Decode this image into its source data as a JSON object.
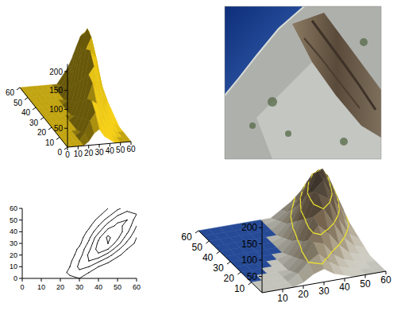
{
  "chart_data": [
    {
      "type": "surface",
      "color": "#e8c414",
      "x": [
        0,
        5,
        10,
        15,
        20,
        25,
        30,
        35,
        40,
        45,
        50,
        55,
        60
      ],
      "y": [
        0,
        5,
        10,
        15,
        20,
        25,
        30,
        35,
        40,
        45,
        50,
        55,
        60
      ],
      "z": [
        [
          0,
          0,
          0,
          0,
          10,
          30,
          40,
          20,
          10,
          0,
          0,
          0,
          0
        ],
        [
          0,
          0,
          0,
          0,
          20,
          50,
          70,
          40,
          20,
          10,
          0,
          0,
          0
        ],
        [
          0,
          0,
          0,
          0,
          10,
          40,
          90,
          80,
          40,
          20,
          10,
          0,
          0
        ],
        [
          0,
          0,
          0,
          0,
          0,
          30,
          80,
          120,
          90,
          50,
          20,
          10,
          0
        ],
        [
          0,
          0,
          0,
          0,
          0,
          20,
          60,
          130,
          150,
          100,
          50,
          20,
          10
        ],
        [
          0,
          0,
          0,
          0,
          0,
          10,
          50,
          110,
          180,
          160,
          90,
          40,
          20
        ],
        [
          0,
          0,
          0,
          0,
          0,
          0,
          30,
          90,
          170,
          200,
          140,
          70,
          30
        ],
        [
          0,
          0,
          0,
          0,
          0,
          0,
          20,
          70,
          150,
          210,
          170,
          100,
          40
        ],
        [
          0,
          0,
          0,
          0,
          0,
          0,
          10,
          50,
          110,
          180,
          190,
          130,
          60
        ],
        [
          0,
          0,
          0,
          0,
          0,
          0,
          0,
          30,
          80,
          140,
          170,
          150,
          80
        ],
        [
          0,
          0,
          0,
          0,
          0,
          0,
          0,
          20,
          50,
          100,
          150,
          160,
          100
        ],
        [
          0,
          0,
          0,
          0,
          0,
          0,
          0,
          10,
          30,
          60,
          110,
          140,
          120
        ],
        [
          0,
          0,
          0,
          0,
          0,
          0,
          0,
          0,
          20,
          40,
          70,
          100,
          90
        ]
      ],
      "xlim": [
        0,
        60
      ],
      "ylim": [
        0,
        60
      ],
      "zlim": [
        0,
        220
      ],
      "xticks": [
        0,
        10,
        20,
        30,
        40,
        50,
        60
      ],
      "yticks": [
        0,
        10,
        20,
        30,
        40,
        50,
        60
      ],
      "zticks": [
        50,
        100,
        150,
        200
      ]
    },
    {
      "type": "image"
    },
    {
      "type": "contour",
      "color": "#000000",
      "x": [
        0,
        5,
        10,
        15,
        20,
        25,
        30,
        35,
        40,
        45,
        50,
        55,
        60
      ],
      "y": [
        0,
        5,
        10,
        15,
        20,
        25,
        30,
        35,
        40,
        45,
        50,
        55,
        60
      ],
      "z": [
        [
          0,
          0,
          0,
          0,
          10,
          30,
          40,
          20,
          10,
          0,
          0,
          0,
          0
        ],
        [
          0,
          0,
          0,
          0,
          20,
          50,
          70,
          40,
          20,
          10,
          0,
          0,
          0
        ],
        [
          0,
          0,
          0,
          0,
          10,
          40,
          90,
          80,
          40,
          20,
          10,
          0,
          0
        ],
        [
          0,
          0,
          0,
          0,
          0,
          30,
          80,
          120,
          90,
          50,
          20,
          10,
          0
        ],
        [
          0,
          0,
          0,
          0,
          0,
          20,
          60,
          130,
          150,
          100,
          50,
          20,
          10
        ],
        [
          0,
          0,
          0,
          0,
          0,
          10,
          50,
          110,
          180,
          160,
          90,
          40,
          20
        ],
        [
          0,
          0,
          0,
          0,
          0,
          0,
          30,
          90,
          170,
          200,
          140,
          70,
          30
        ],
        [
          0,
          0,
          0,
          0,
          0,
          0,
          20,
          70,
          150,
          210,
          170,
          100,
          40
        ],
        [
          0,
          0,
          0,
          0,
          0,
          0,
          10,
          50,
          110,
          180,
          190,
          130,
          60
        ],
        [
          0,
          0,
          0,
          0,
          0,
          0,
          0,
          30,
          80,
          140,
          170,
          150,
          80
        ],
        [
          0,
          0,
          0,
          0,
          0,
          0,
          0,
          20,
          50,
          100,
          150,
          160,
          100
        ],
        [
          0,
          0,
          0,
          0,
          0,
          0,
          0,
          10,
          30,
          60,
          110,
          140,
          120
        ],
        [
          0,
          0,
          0,
          0,
          0,
          0,
          0,
          0,
          20,
          40,
          70,
          100,
          90
        ]
      ],
      "contour_levels": [
        40,
        80,
        120,
        160,
        200
      ],
      "xlim": [
        0,
        60
      ],
      "ylim": [
        0,
        60
      ],
      "xticks": [
        0,
        10,
        20,
        30,
        40,
        50,
        60
      ],
      "yticks": [
        0,
        10,
        20,
        30,
        40,
        50,
        60
      ]
    },
    {
      "type": "draped_surface",
      "color": "#e8e030",
      "x": [
        0,
        5,
        10,
        15,
        20,
        25,
        30,
        35,
        40,
        45,
        50,
        55,
        60
      ],
      "y": [
        0,
        5,
        10,
        15,
        20,
        25,
        30,
        35,
        40,
        45,
        50,
        55,
        60
      ],
      "z": [
        [
          0,
          0,
          0,
          0,
          10,
          30,
          40,
          20,
          10,
          0,
          0,
          0,
          0
        ],
        [
          0,
          0,
          0,
          0,
          20,
          50,
          70,
          40,
          20,
          10,
          0,
          0,
          0
        ],
        [
          0,
          0,
          0,
          0,
          10,
          40,
          90,
          80,
          40,
          20,
          10,
          0,
          0
        ],
        [
          0,
          0,
          0,
          0,
          0,
          30,
          80,
          120,
          90,
          50,
          20,
          10,
          0
        ],
        [
          0,
          0,
          0,
          0,
          0,
          20,
          60,
          130,
          150,
          100,
          50,
          20,
          10
        ],
        [
          0,
          0,
          0,
          0,
          0,
          10,
          50,
          110,
          180,
          160,
          90,
          40,
          20
        ],
        [
          0,
          0,
          0,
          0,
          0,
          0,
          30,
          90,
          170,
          200,
          140,
          70,
          30
        ],
        [
          0,
          0,
          0,
          0,
          0,
          0,
          20,
          70,
          150,
          210,
          170,
          100,
          40
        ],
        [
          0,
          0,
          0,
          0,
          0,
          0,
          10,
          50,
          110,
          180,
          190,
          130,
          60
        ],
        [
          0,
          0,
          0,
          0,
          0,
          0,
          0,
          30,
          80,
          140,
          170,
          150,
          80
        ],
        [
          0,
          0,
          0,
          0,
          0,
          0,
          0,
          20,
          50,
          100,
          150,
          160,
          100
        ],
        [
          0,
          0,
          0,
          0,
          0,
          0,
          0,
          10,
          30,
          60,
          110,
          140,
          120
        ],
        [
          0,
          0,
          0,
          0,
          0,
          0,
          0,
          0,
          20,
          40,
          70,
          100,
          90
        ]
      ],
      "contour_levels": [
        50,
        100,
        150
      ],
      "xlim": [
        0,
        60
      ],
      "ylim": [
        0,
        60
      ],
      "zlim": [
        0,
        220
      ],
      "xticks": [
        10,
        20,
        30,
        40,
        50,
        60
      ],
      "yticks": [
        10,
        20,
        30,
        40,
        50,
        60
      ],
      "zticks": [
        50,
        100,
        150,
        200
      ]
    }
  ]
}
